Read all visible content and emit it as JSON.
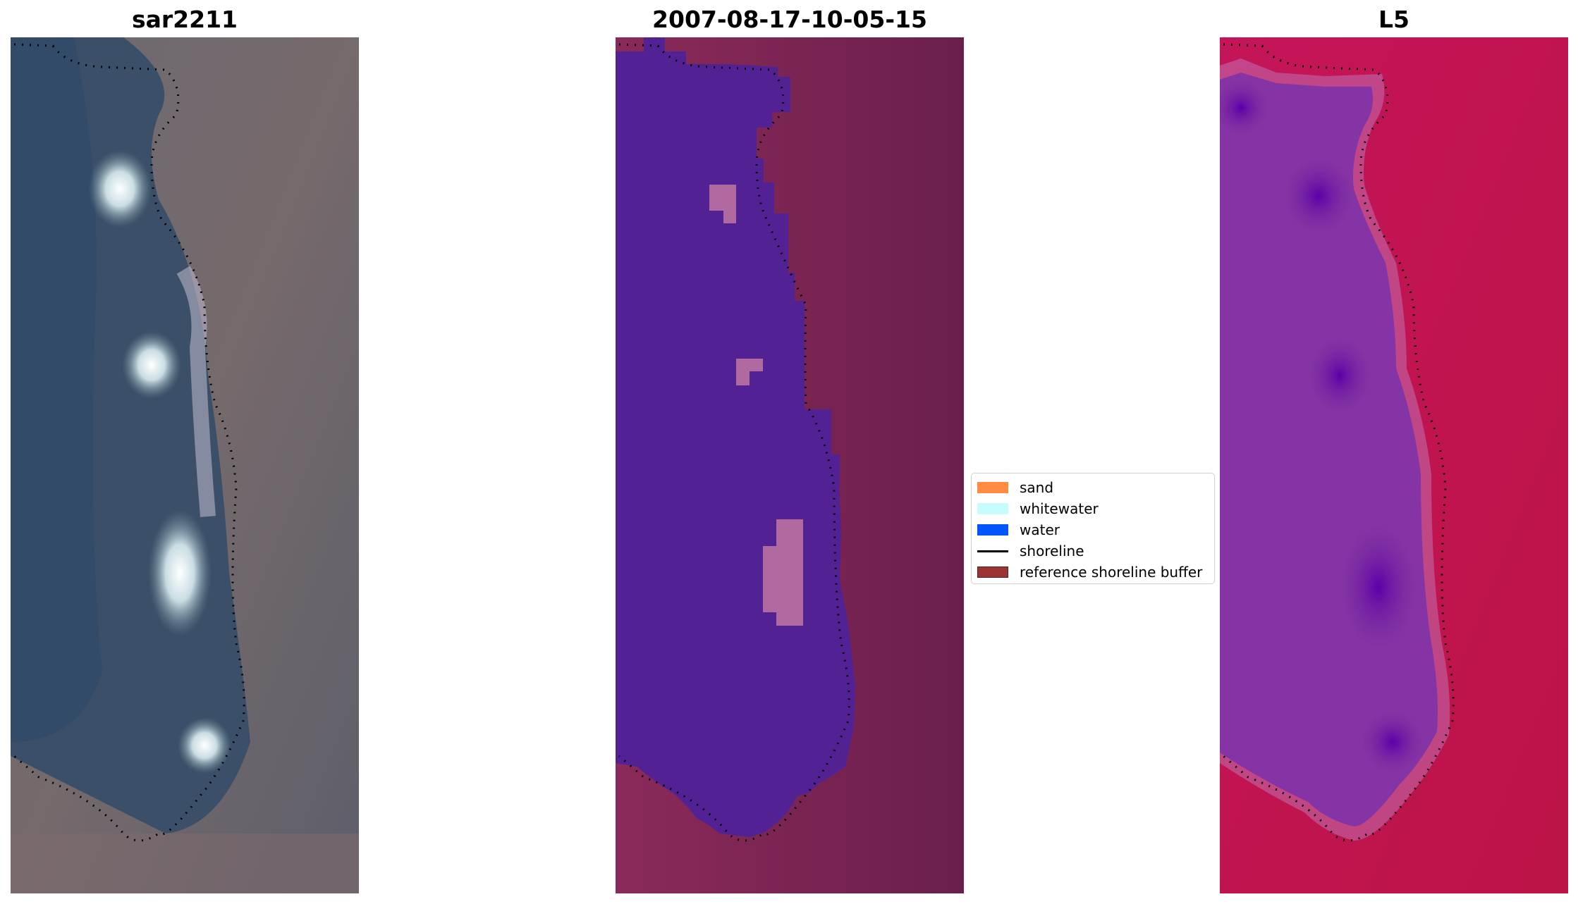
{
  "panels": [
    {
      "title": "sar2211"
    },
    {
      "title": "2007-08-17-10-05-15"
    },
    {
      "title": "L5"
    }
  ],
  "legend": {
    "items": [
      {
        "label": "sand",
        "color": "#ff8c42",
        "kind": "patch"
      },
      {
        "label": "whitewater",
        "color": "#c8fcfc",
        "kind": "patch"
      },
      {
        "label": "water",
        "color": "#0055ff",
        "kind": "patch"
      },
      {
        "label": "shoreline",
        "color": "#000000",
        "kind": "line"
      },
      {
        "label": "reference shoreline buffer",
        "color": "#9b3434",
        "kind": "patch"
      }
    ]
  }
}
